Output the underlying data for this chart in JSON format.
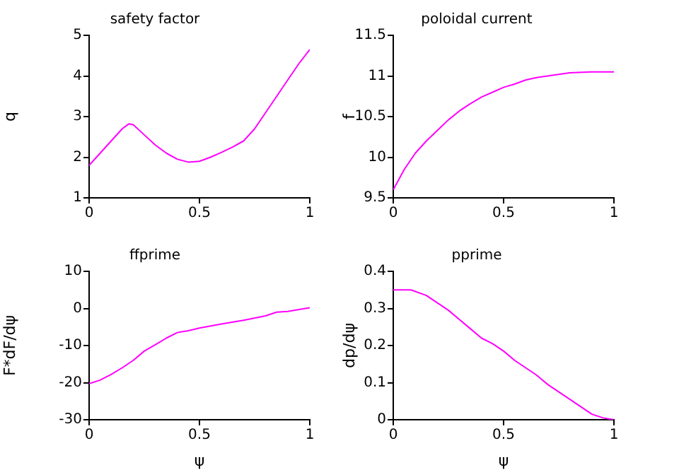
{
  "chart_data": [
    {
      "type": "line",
      "title": "safety factor",
      "ylabel": "q",
      "xlim": [
        0,
        1
      ],
      "xticks": [
        0,
        0.5,
        1
      ],
      "ylim": [
        1,
        5
      ],
      "yticks": [
        1,
        2,
        3,
        4,
        5
      ],
      "grid": false,
      "legend": false,
      "marker": "none",
      "series": [
        {
          "color": "#ff00ff",
          "x": [
            0,
            0.05,
            0.1,
            0.15,
            0.18,
            0.2,
            0.25,
            0.3,
            0.35,
            0.4,
            0.45,
            0.5,
            0.55,
            0.6,
            0.65,
            0.7,
            0.75,
            0.8,
            0.85,
            0.9,
            0.95,
            1
          ],
          "values": [
            1.8,
            2.1,
            2.4,
            2.7,
            2.82,
            2.8,
            2.55,
            2.3,
            2.1,
            1.95,
            1.88,
            1.9,
            2.0,
            2.12,
            2.25,
            2.4,
            2.7,
            3.1,
            3.5,
            3.9,
            4.3,
            4.65
          ]
        }
      ]
    },
    {
      "type": "line",
      "title": "poloidal current",
      "ylabel": "f",
      "xlim": [
        0,
        1
      ],
      "xticks": [
        0,
        0.5,
        1
      ],
      "ylim": [
        9.5,
        11.5
      ],
      "yticks": [
        9.5,
        10,
        10.5,
        11,
        11.5
      ],
      "grid": false,
      "legend": false,
      "marker": "none",
      "series": [
        {
          "color": "#ff00ff",
          "x": [
            0,
            0.05,
            0.1,
            0.15,
            0.2,
            0.25,
            0.3,
            0.35,
            0.4,
            0.45,
            0.5,
            0.55,
            0.6,
            0.65,
            0.7,
            0.75,
            0.8,
            0.9,
            1
          ],
          "values": [
            9.6,
            9.85,
            10.05,
            10.2,
            10.33,
            10.46,
            10.57,
            10.66,
            10.74,
            10.8,
            10.86,
            10.9,
            10.95,
            10.98,
            11.0,
            11.02,
            11.04,
            11.05,
            11.05
          ]
        }
      ]
    },
    {
      "type": "line",
      "title": "ffprime",
      "xlabel": "ψ",
      "ylabel": "F*dF/dψ",
      "xlim": [
        0,
        1
      ],
      "xticks": [
        0,
        0.5,
        1
      ],
      "ylim": [
        -30,
        10
      ],
      "yticks": [
        -30,
        -20,
        -10,
        0,
        10
      ],
      "grid": false,
      "legend": false,
      "marker": "none",
      "series": [
        {
          "color": "#ff00ff",
          "x": [
            0,
            0.05,
            0.1,
            0.15,
            0.2,
            0.25,
            0.3,
            0.35,
            0.4,
            0.45,
            0.5,
            0.6,
            0.7,
            0.8,
            0.85,
            0.9,
            1
          ],
          "values": [
            -20.3,
            -19.3,
            -17.8,
            -16,
            -14,
            -11.5,
            -9.8,
            -8,
            -6.5,
            -6,
            -5.3,
            -4.2,
            -3.2,
            -2,
            -1,
            -0.8,
            0.2
          ]
        }
      ]
    },
    {
      "type": "line",
      "title": "pprime",
      "xlabel": "ψ",
      "ylabel": "dp/dψ",
      "xlim": [
        0,
        1
      ],
      "xticks": [
        0,
        0.5,
        1
      ],
      "ylim": [
        0,
        0.4
      ],
      "yticks": [
        0,
        0.1,
        0.2,
        0.3,
        0.4
      ],
      "grid": false,
      "legend": false,
      "marker": "none",
      "series": [
        {
          "color": "#ff00ff",
          "x": [
            0,
            0.08,
            0.15,
            0.2,
            0.25,
            0.3,
            0.35,
            0.4,
            0.45,
            0.5,
            0.55,
            0.6,
            0.65,
            0.7,
            0.75,
            0.8,
            0.85,
            0.9,
            0.95,
            1
          ],
          "values": [
            0.35,
            0.35,
            0.335,
            0.315,
            0.295,
            0.27,
            0.245,
            0.22,
            0.205,
            0.185,
            0.16,
            0.14,
            0.12,
            0.095,
            0.075,
            0.055,
            0.035,
            0.015,
            0.005,
            0
          ]
        }
      ]
    }
  ]
}
